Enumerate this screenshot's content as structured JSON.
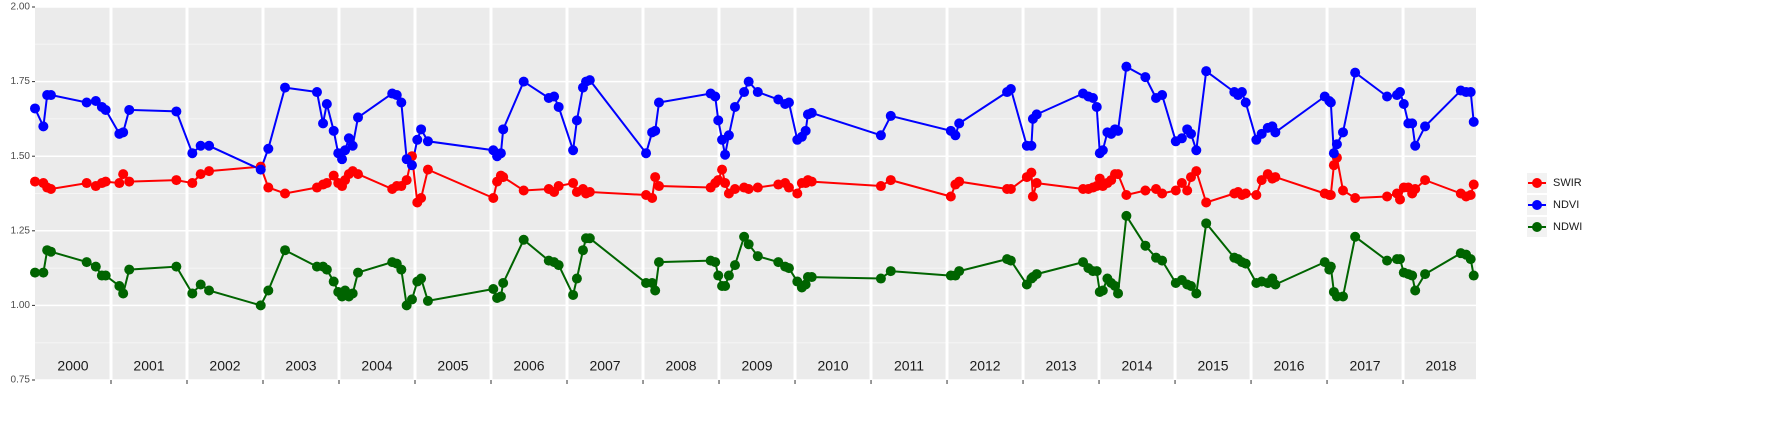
{
  "chart_data": {
    "type": "line",
    "x": [
      2000.0,
      2000.11,
      2000.16,
      2000.21,
      2000.68,
      2000.8,
      2000.88,
      2000.93,
      2001.11,
      2001.16,
      2001.24,
      2001.86,
      2002.07,
      2002.18,
      2002.29,
      2002.97,
      2003.07,
      2003.29,
      2003.71,
      2003.79,
      2003.84,
      2003.93,
      2003.99,
      2004.04,
      2004.08,
      2004.13,
      2004.18,
      2004.25,
      2004.7,
      2004.76,
      2004.82,
      2004.89,
      2004.96,
      2005.03,
      2005.08,
      2005.17,
      2006.03,
      2006.08,
      2006.13,
      2006.16,
      2006.43,
      2006.76,
      2006.83,
      2006.89,
      2007.08,
      2007.13,
      2007.21,
      2007.25,
      2007.3,
      2008.04,
      2008.12,
      2008.16,
      2008.21,
      2008.89,
      2008.95,
      2008.99,
      2009.04,
      2009.08,
      2009.13,
      2009.21,
      2009.33,
      2009.39,
      2009.51,
      2009.78,
      2009.87,
      2009.92,
      2010.03,
      2010.09,
      2010.14,
      2010.17,
      2010.22,
      2011.13,
      2011.26,
      2012.05,
      2012.11,
      2012.16,
      2012.79,
      2012.84,
      2013.05,
      2013.11,
      2013.13,
      2013.18,
      2013.79,
      2013.86,
      2013.92,
      2013.97,
      2014.01,
      2014.05,
      2014.11,
      2014.16,
      2014.21,
      2014.25,
      2014.36,
      2014.61,
      2014.75,
      2014.83,
      2015.01,
      2015.09,
      2015.16,
      2015.21,
      2015.28,
      2015.41,
      2015.78,
      2015.83,
      2015.88,
      2015.93,
      2016.07,
      2016.14,
      2016.22,
      2016.28,
      2016.32,
      2016.97,
      2017.03,
      2017.05,
      2017.09,
      2017.13,
      2017.21,
      2017.37,
      2017.79,
      2017.92,
      2017.96,
      2018.01,
      2018.07,
      2018.12,
      2018.16,
      2018.29,
      2018.76,
      2018.83,
      2018.89,
      2018.93
    ],
    "series": [
      {
        "name": "SWIR",
        "color": "#ff0000",
        "values": [
          1.415,
          1.41,
          1.395,
          1.39,
          1.41,
          1.4,
          1.41,
          1.415,
          1.41,
          1.44,
          1.415,
          1.42,
          1.41,
          1.44,
          1.45,
          1.465,
          1.395,
          1.375,
          1.395,
          1.405,
          1.41,
          1.435,
          1.41,
          1.4,
          1.42,
          1.44,
          1.45,
          1.44,
          1.39,
          1.4,
          1.4,
          1.42,
          1.5,
          1.345,
          1.36,
          1.455,
          1.36,
          1.415,
          1.435,
          1.43,
          1.385,
          1.39,
          1.38,
          1.4,
          1.41,
          1.38,
          1.39,
          1.375,
          1.38,
          1.37,
          1.36,
          1.43,
          1.4,
          1.395,
          1.41,
          1.42,
          1.455,
          1.41,
          1.375,
          1.39,
          1.395,
          1.39,
          1.395,
          1.405,
          1.41,
          1.395,
          1.375,
          1.41,
          1.41,
          1.42,
          1.415,
          1.4,
          1.42,
          1.365,
          1.405,
          1.415,
          1.39,
          1.39,
          1.43,
          1.445,
          1.365,
          1.41,
          1.39,
          1.39,
          1.395,
          1.4,
          1.425,
          1.4,
          1.41,
          1.42,
          1.44,
          1.44,
          1.37,
          1.385,
          1.39,
          1.375,
          1.385,
          1.41,
          1.385,
          1.43,
          1.45,
          1.345,
          1.375,
          1.38,
          1.37,
          1.375,
          1.37,
          1.42,
          1.44,
          1.425,
          1.43,
          1.375,
          1.37,
          1.37,
          1.47,
          1.495,
          1.385,
          1.36,
          1.365,
          1.375,
          1.355,
          1.395,
          1.395,
          1.375,
          1.39,
          1.42,
          1.375,
          1.365,
          1.37,
          1.405
        ]
      },
      {
        "name": "NDVI",
        "color": "#0000ff",
        "values": [
          1.66,
          1.6,
          1.705,
          1.705,
          1.68,
          1.685,
          1.665,
          1.655,
          1.575,
          1.58,
          1.655,
          1.65,
          1.51,
          1.535,
          1.535,
          1.455,
          1.525,
          1.73,
          1.715,
          1.61,
          1.675,
          1.585,
          1.51,
          1.49,
          1.52,
          1.56,
          1.535,
          1.63,
          1.71,
          1.705,
          1.68,
          1.49,
          1.47,
          1.555,
          1.59,
          1.55,
          1.52,
          1.5,
          1.51,
          1.59,
          1.75,
          1.695,
          1.7,
          1.665,
          1.52,
          1.62,
          1.73,
          1.75,
          1.755,
          1.51,
          1.58,
          1.585,
          1.68,
          1.71,
          1.7,
          1.62,
          1.555,
          1.505,
          1.57,
          1.665,
          1.715,
          1.75,
          1.715,
          1.69,
          1.675,
          1.68,
          1.555,
          1.565,
          1.585,
          1.64,
          1.645,
          1.57,
          1.635,
          1.585,
          1.57,
          1.61,
          1.715,
          1.725,
          1.535,
          1.535,
          1.625,
          1.64,
          1.71,
          1.7,
          1.695,
          1.665,
          1.51,
          1.52,
          1.58,
          1.575,
          1.59,
          1.585,
          1.8,
          1.765,
          1.695,
          1.705,
          1.55,
          1.56,
          1.59,
          1.575,
          1.52,
          1.785,
          1.715,
          1.705,
          1.715,
          1.68,
          1.555,
          1.575,
          1.595,
          1.6,
          1.58,
          1.7,
          1.685,
          1.68,
          1.51,
          1.54,
          1.58,
          1.78,
          1.7,
          1.705,
          1.715,
          1.675,
          1.61,
          1.61,
          1.535,
          1.6,
          1.72,
          1.715,
          1.715,
          1.615
        ]
      },
      {
        "name": "NDWI",
        "color": "#006400",
        "values": [
          1.11,
          1.11,
          1.185,
          1.18,
          1.145,
          1.13,
          1.1,
          1.1,
          1.065,
          1.04,
          1.12,
          1.13,
          1.04,
          1.07,
          1.05,
          1.0,
          1.05,
          1.185,
          1.13,
          1.13,
          1.12,
          1.08,
          1.045,
          1.03,
          1.05,
          1.03,
          1.04,
          1.11,
          1.145,
          1.14,
          1.12,
          1.0,
          1.02,
          1.08,
          1.09,
          1.015,
          1.055,
          1.025,
          1.03,
          1.075,
          1.22,
          1.15,
          1.145,
          1.135,
          1.035,
          1.09,
          1.185,
          1.225,
          1.225,
          1.075,
          1.075,
          1.05,
          1.145,
          1.15,
          1.145,
          1.1,
          1.065,
          1.065,
          1.1,
          1.135,
          1.23,
          1.205,
          1.165,
          1.145,
          1.13,
          1.125,
          1.08,
          1.06,
          1.07,
          1.095,
          1.095,
          1.09,
          1.115,
          1.1,
          1.1,
          1.115,
          1.155,
          1.15,
          1.07,
          1.09,
          1.095,
          1.105,
          1.145,
          1.125,
          1.115,
          1.115,
          1.045,
          1.05,
          1.09,
          1.075,
          1.065,
          1.04,
          1.3,
          1.2,
          1.16,
          1.15,
          1.075,
          1.085,
          1.07,
          1.065,
          1.04,
          1.275,
          1.16,
          1.155,
          1.145,
          1.14,
          1.075,
          1.08,
          1.075,
          1.09,
          1.07,
          1.145,
          1.12,
          1.13,
          1.045,
          1.03,
          1.03,
          1.23,
          1.15,
          1.155,
          1.155,
          1.11,
          1.105,
          1.1,
          1.05,
          1.105,
          1.175,
          1.17,
          1.155,
          1.1
        ]
      }
    ],
    "xlim": [
      2000,
      2018.96
    ],
    "xticks": [
      2001,
      2002,
      2003,
      2004,
      2005,
      2006,
      2007,
      2008,
      2009,
      2010,
      2011,
      2012,
      2013,
      2014,
      2015,
      2016,
      2017,
      2018
    ],
    "year_labels": [
      2000,
      2001,
      2002,
      2003,
      2004,
      2005,
      2006,
      2007,
      2008,
      2009,
      2010,
      2011,
      2012,
      2013,
      2014,
      2015,
      2016,
      2017,
      2018
    ],
    "ylim": [
      0.75,
      2.0
    ],
    "yticks": [
      {
        "value": 0.75,
        "label": "0.75"
      },
      {
        "value": 1,
        "label": "1.00"
      },
      {
        "value": 1.25,
        "label": "1.25"
      },
      {
        "value": 1.5,
        "label": "1.50"
      },
      {
        "value": 1.75,
        "label": "1.75"
      },
      {
        "value": 2,
        "label": "2.00"
      }
    ],
    "grid": true,
    "legend": "right"
  }
}
